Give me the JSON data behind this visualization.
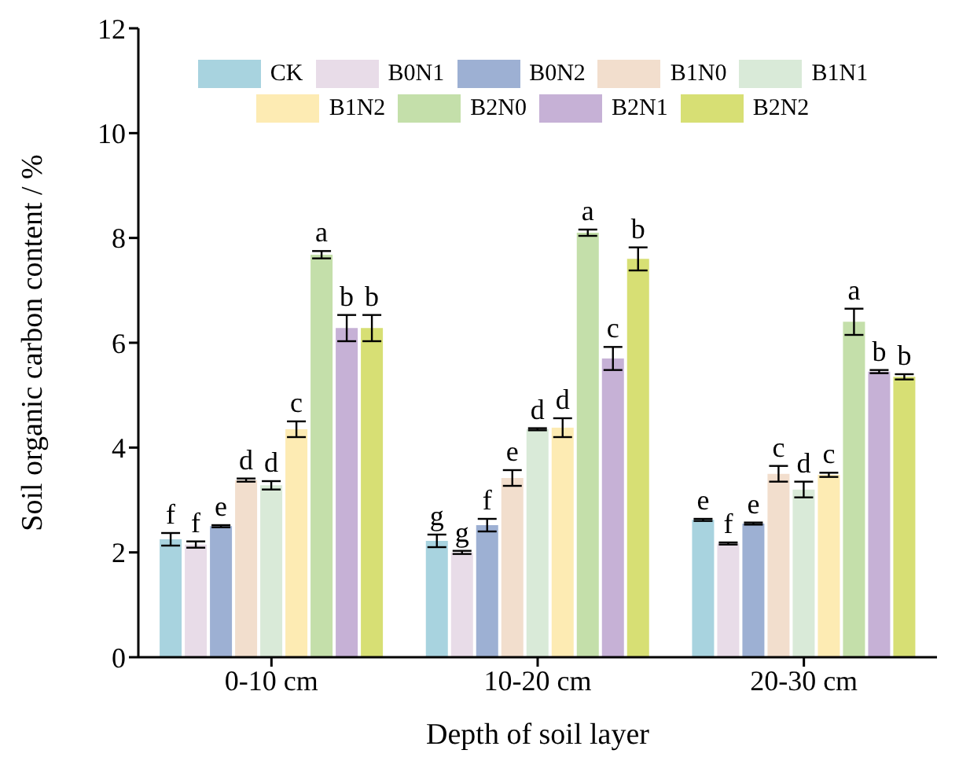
{
  "chart_data": {
    "type": "bar",
    "xlabel": "Depth of soil layer",
    "ylabel": "Soil organic carbon content / %",
    "categories": [
      "0-10 cm",
      "10-20 cm",
      "20-30 cm"
    ],
    "series": [
      {
        "name": "CK",
        "color": "#a8d3df",
        "values": [
          2.25,
          2.22,
          2.62
        ],
        "errors": [
          0.12,
          0.12,
          0.02
        ],
        "value_labels": [
          "f",
          "g",
          "e"
        ]
      },
      {
        "name": "B0N1",
        "color": "#e8dce8",
        "values": [
          2.15,
          2.0,
          2.17
        ],
        "errors": [
          0.06,
          0.03,
          0.02
        ],
        "value_labels": [
          "f",
          "g",
          "f"
        ]
      },
      {
        "name": "B0N2",
        "color": "#9db0d3",
        "values": [
          2.5,
          2.52,
          2.55
        ],
        "errors": [
          0.02,
          0.12,
          0.02
        ],
        "value_labels": [
          "e",
          "f",
          "e"
        ]
      },
      {
        "name": "B1N0",
        "color": "#f2decd",
        "values": [
          3.38,
          3.42,
          3.5
        ],
        "errors": [
          0.03,
          0.15,
          0.15
        ],
        "value_labels": [
          "d",
          "e",
          "c"
        ]
      },
      {
        "name": "B1N1",
        "color": "#d9ead8",
        "values": [
          3.28,
          4.35,
          3.2
        ],
        "errors": [
          0.08,
          0.02,
          0.15
        ],
        "value_labels": [
          "d",
          "d",
          "d"
        ]
      },
      {
        "name": "B1N2",
        "color": "#fdebb3",
        "values": [
          4.35,
          4.38,
          3.48
        ],
        "errors": [
          0.15,
          0.18,
          0.04
        ],
        "value_labels": [
          "c",
          "d",
          "c"
        ]
      },
      {
        "name": "B2N0",
        "color": "#c4dfaa",
        "values": [
          7.68,
          8.1,
          6.4
        ],
        "errors": [
          0.07,
          0.06,
          0.25
        ],
        "value_labels": [
          "a",
          "a",
          "a"
        ]
      },
      {
        "name": "B2N1",
        "color": "#c6b1d6",
        "values": [
          6.28,
          5.7,
          5.45
        ],
        "errors": [
          0.25,
          0.22,
          0.03
        ],
        "value_labels": [
          "b",
          "c",
          "b"
        ]
      },
      {
        "name": "B2N2",
        "color": "#d7df74",
        "values": [
          6.28,
          7.6,
          5.35
        ],
        "errors": [
          0.25,
          0.22,
          0.05
        ],
        "value_labels": [
          "b",
          "b",
          "b"
        ]
      }
    ],
    "ylim": [
      0,
      12
    ],
    "yticks": [
      0,
      2,
      4,
      6,
      8,
      10,
      12
    ],
    "grid": false,
    "legend": "top"
  }
}
